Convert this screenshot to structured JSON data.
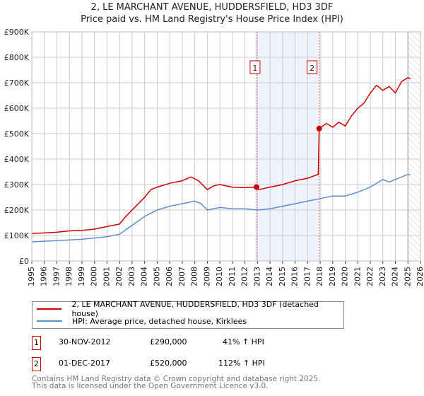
{
  "chart_data": {
    "type": "line",
    "title": "2, LE MARCHANT AVENUE, HUDDERSFIELD, HD3 3DF",
    "subtitle": "Price paid vs. HM Land Registry's House Price Index (HPI)",
    "xlim": [
      1995,
      2026
    ],
    "ylim": [
      0,
      900000
    ],
    "y_ticks": [
      {
        "v": 0,
        "label": "£0"
      },
      {
        "v": 100000,
        "label": "£100K"
      },
      {
        "v": 200000,
        "label": "£200K"
      },
      {
        "v": 300000,
        "label": "£300K"
      },
      {
        "v": 400000,
        "label": "£400K"
      },
      {
        "v": 500000,
        "label": "£500K"
      },
      {
        "v": 600000,
        "label": "£600K"
      },
      {
        "v": 700000,
        "label": "£700K"
      },
      {
        "v": 800000,
        "label": "£800K"
      },
      {
        "v": 900000,
        "label": "£900K"
      }
    ],
    "x_ticks": [
      "1995",
      "1996",
      "1997",
      "1998",
      "1999",
      "2000",
      "2001",
      "2002",
      "2003",
      "2004",
      "2005",
      "2006",
      "2007",
      "2008",
      "2009",
      "2010",
      "2011",
      "2012",
      "2013",
      "2014",
      "2015",
      "2016",
      "2017",
      "2018",
      "2019",
      "2020",
      "2021",
      "2022",
      "2023",
      "2024",
      "2025",
      "2026"
    ],
    "grid": true,
    "shaded_range": [
      2012.92,
      2017.92
    ],
    "forecast_hatch_from": 2025.0,
    "series": [
      {
        "name": "2, LE MARCHANT AVENUE, HUDDERSFIELD, HD3 3DF (detached house)",
        "color": "#cc0000",
        "x": [
          1995,
          1996,
          1997,
          1998,
          1999,
          2000,
          2001,
          2002,
          2002.5,
          2003,
          2003.5,
          2004,
          2004.5,
          2005,
          2006,
          2007,
          2007.7,
          2008.3,
          2009,
          2009.5,
          2010,
          2011,
          2012,
          2012.92,
          2013.1,
          2014,
          2015,
          2016,
          2017,
          2017.85,
          2017.92,
          2018.5,
          2019,
          2019.5,
          2020,
          2020.5,
          2021,
          2021.5,
          2022,
          2022.5,
          2023,
          2023.5,
          2024,
          2024.5,
          2025,
          2025.2
        ],
        "y": [
          108000,
          110000,
          113000,
          118000,
          120000,
          125000,
          135000,
          145000,
          175000,
          200000,
          225000,
          250000,
          280000,
          290000,
          305000,
          315000,
          330000,
          315000,
          280000,
          295000,
          300000,
          290000,
          288000,
          290000,
          280000,
          290000,
          300000,
          315000,
          325000,
          340000,
          520000,
          540000,
          525000,
          545000,
          530000,
          570000,
          600000,
          620000,
          660000,
          690000,
          670000,
          685000,
          660000,
          705000,
          720000,
          715000
        ]
      },
      {
        "name": "HPI: Average price, detached house, Kirklees",
        "color": "#5b8fd0",
        "x": [
          1995,
          1997,
          1999,
          2001,
          2002,
          2003,
          2004,
          2005,
          2006,
          2007,
          2008,
          2008.5,
          2009,
          2010,
          2011,
          2012,
          2013,
          2014,
          2015,
          2016,
          2017,
          2018,
          2019,
          2020,
          2021,
          2022,
          2023,
          2023.5,
          2024,
          2025,
          2025.2
        ],
        "y": [
          75000,
          80000,
          85000,
          95000,
          105000,
          140000,
          175000,
          200000,
          215000,
          225000,
          235000,
          225000,
          200000,
          210000,
          205000,
          205000,
          200000,
          205000,
          215000,
          225000,
          235000,
          245000,
          255000,
          255000,
          270000,
          290000,
          320000,
          310000,
          320000,
          340000,
          338000
        ]
      }
    ],
    "sales": [
      {
        "id": "1",
        "x": 2012.92,
        "y": 290000
      },
      {
        "id": "2",
        "x": 2017.92,
        "y": 520000
      }
    ]
  },
  "legend": {
    "items": [
      "2, LE MARCHANT AVENUE, HUDDERSFIELD, HD3 3DF (detached house)",
      "HPI: Average price, detached house, Kirklees"
    ]
  },
  "transactions": [
    {
      "id": "1",
      "date": "30-NOV-2012",
      "price": "£290,000",
      "hpi": "41% ↑ HPI"
    },
    {
      "id": "2",
      "date": "01-DEC-2017",
      "price": "£520,000",
      "hpi": "112% ↑ HPI"
    }
  ],
  "footer": {
    "line1": "Contains HM Land Registry data © Crown copyright and database right 2025.",
    "line2": "This data is licensed under the Open Government Licence v3.0."
  }
}
